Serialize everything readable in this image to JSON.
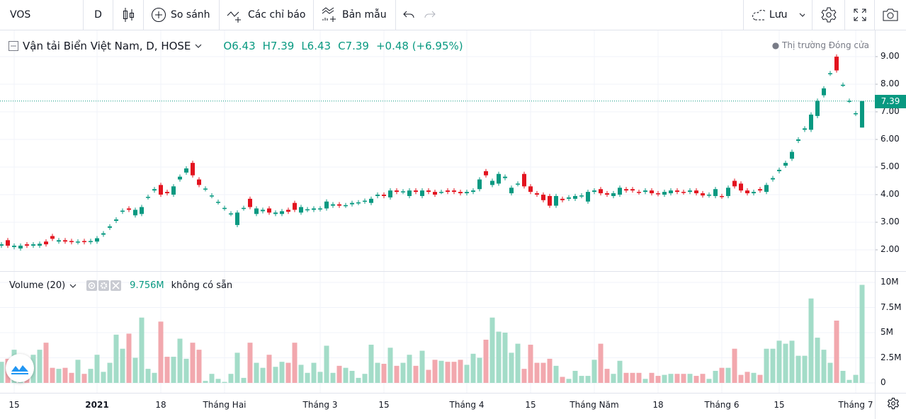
{
  "toolbar": {
    "symbol": "VOS",
    "interval": "D",
    "compare_label": "So sánh",
    "indicators_label": "Các chỉ báo",
    "templates_label": "Bản mẫu",
    "save_label": "Lưu"
  },
  "legend": {
    "title": "Vận tải Biển Việt Nam, D, HOSE",
    "open": "O6.43",
    "high": "H7.39",
    "low": "L6.43",
    "close": "C7.39",
    "change": "+0.48 (+6.95%)",
    "market_status": "● Thị trường Đóng cửa"
  },
  "volume_legend": {
    "title": "Volume (20)",
    "value": "9.756M",
    "ma_text": "không có sẵn"
  },
  "last_price_label": "7.39",
  "colors": {
    "up": "#089981",
    "down": "#e3131f",
    "vol_up": "#a3dcc8",
    "vol_down": "#f2a8ae"
  },
  "chart_data": {
    "type": "candlestick",
    "symbol": "VOS",
    "price_ticks": [
      "9.00",
      "8.00",
      "7.00",
      "6.00",
      "5.00",
      "4.00",
      "3.00",
      "2.00"
    ],
    "price_range": [
      1.3,
      10.0
    ],
    "volume_ticks": [
      {
        "label": "10M",
        "value": 10
      },
      {
        "label": "7.5M",
        "value": 7.5
      },
      {
        "label": "5M",
        "value": 5
      },
      {
        "label": "2.5M",
        "value": 2.5
      },
      {
        "label": "0",
        "value": 0
      }
    ],
    "time_labels": [
      {
        "label": "15",
        "bar": 2
      },
      {
        "label": "2021",
        "bar": 15,
        "bold": true
      },
      {
        "label": "18",
        "bar": 25
      },
      {
        "label": "Tháng Hai",
        "bar": 35
      },
      {
        "label": "Tháng 3",
        "bar": 50
      },
      {
        "label": "15",
        "bar": 60
      },
      {
        "label": "Tháng 4",
        "bar": 73
      },
      {
        "label": "15",
        "bar": 83
      },
      {
        "label": "Tháng Năm",
        "bar": 93
      },
      {
        "label": "18",
        "bar": 103
      },
      {
        "label": "Tháng 6",
        "bar": 113
      },
      {
        "label": "15",
        "bar": 122
      },
      {
        "label": "Tháng 7",
        "bar": 134
      }
    ],
    "candles_fields": [
      "open",
      "close",
      "volume_M"
    ],
    "candles": [
      [
        2.15,
        2.2,
        2.1
      ],
      [
        2.35,
        2.15,
        2.4
      ],
      [
        2.1,
        2.15,
        3.3
      ],
      [
        2.05,
        2.15,
        1.5
      ],
      [
        2.2,
        2.15,
        1.9
      ],
      [
        2.15,
        2.2,
        2.8
      ],
      [
        2.15,
        2.22,
        3.3
      ],
      [
        2.3,
        2.2,
        4.0
      ],
      [
        2.5,
        2.4,
        1.5
      ],
      [
        2.3,
        2.35,
        1.4
      ],
      [
        2.35,
        2.3,
        1.5
      ],
      [
        2.32,
        2.28,
        1.0
      ],
      [
        2.28,
        2.3,
        2.3
      ],
      [
        2.32,
        2.28,
        0.9
      ],
      [
        2.28,
        2.32,
        1.4
      ],
      [
        2.3,
        2.42,
        2.8
      ],
      [
        2.55,
        2.6,
        1.1
      ],
      [
        2.8,
        2.85,
        2.0
      ],
      [
        3.05,
        3.1,
        4.8
      ],
      [
        3.38,
        3.42,
        3.4
      ],
      [
        3.5,
        3.45,
        4.9
      ],
      [
        3.25,
        3.45,
        2.5
      ],
      [
        3.3,
        3.55,
        6.5
      ],
      [
        3.9,
        3.92,
        1.4
      ],
      [
        4.15,
        4.2,
        1.0
      ],
      [
        4.35,
        4.0,
        6.1
      ],
      [
        4.1,
        4.05,
        2.6
      ],
      [
        4.0,
        4.3,
        2.6
      ],
      [
        4.55,
        4.65,
        4.4
      ],
      [
        4.8,
        4.95,
        2.4
      ],
      [
        5.15,
        4.7,
        4.0
      ],
      [
        4.55,
        4.35,
        3.3
      ],
      [
        4.2,
        4.22,
        0.2
      ],
      [
        3.95,
        3.97,
        0.9
      ],
      [
        3.72,
        3.74,
        0.4
      ],
      [
        3.5,
        3.52,
        0.1
      ],
      [
        3.3,
        3.32,
        0.9
      ],
      [
        2.9,
        3.35,
        3.0
      ],
      [
        3.5,
        3.52,
        0.5
      ],
      [
        3.85,
        3.55,
        4.0
      ],
      [
        3.3,
        3.5,
        2.0
      ],
      [
        3.4,
        3.45,
        1.5
      ],
      [
        3.5,
        3.35,
        2.8
      ],
      [
        3.3,
        3.35,
        1.6
      ],
      [
        3.3,
        3.4,
        2.1
      ],
      [
        3.45,
        3.38,
        2.0
      ],
      [
        3.7,
        3.45,
        4.0
      ],
      [
        3.35,
        3.55,
        1.8
      ],
      [
        3.45,
        3.47,
        1.0
      ],
      [
        3.45,
        3.5,
        2.0
      ],
      [
        3.47,
        3.5,
        1.1
      ],
      [
        3.5,
        3.75,
        3.7
      ],
      [
        3.6,
        3.65,
        1.0
      ],
      [
        3.65,
        3.6,
        1.7
      ],
      [
        3.6,
        3.62,
        1.5
      ],
      [
        3.65,
        3.7,
        1.2
      ],
      [
        3.7,
        3.72,
        0.5
      ],
      [
        3.75,
        3.78,
        0.9
      ],
      [
        3.7,
        3.85,
        3.8
      ],
      [
        3.95,
        4.0,
        2.0
      ],
      [
        4.0,
        3.95,
        1.9
      ],
      [
        3.9,
        4.15,
        3.5
      ],
      [
        4.15,
        4.1,
        1.7
      ],
      [
        4.1,
        4.12,
        2.0
      ],
      [
        3.95,
        4.15,
        2.8
      ],
      [
        4.15,
        4.1,
        1.7
      ],
      [
        3.95,
        4.15,
        3.2
      ],
      [
        4.15,
        4.1,
        1.3
      ],
      [
        4.1,
        4.0,
        2.3
      ],
      [
        4.1,
        4.1,
        2.2
      ],
      [
        4.15,
        4.1,
        2.1
      ],
      [
        4.15,
        4.1,
        2.1
      ],
      [
        4.1,
        4.05,
        2.3
      ],
      [
        4.05,
        4.1,
        1.8
      ],
      [
        4.1,
        4.15,
        2.9
      ],
      [
        4.2,
        4.55,
        2.5
      ],
      [
        4.85,
        4.7,
        4.3
      ],
      [
        4.35,
        4.5,
        6.5
      ],
      [
        4.4,
        4.75,
        5.1
      ],
      [
        4.6,
        4.65,
        5.0
      ],
      [
        4.05,
        4.25,
        3.0
      ],
      [
        4.38,
        4.4,
        3.9
      ],
      [
        4.75,
        4.3,
        1.4
      ],
      [
        4.3,
        4.1,
        3.8
      ],
      [
        4.05,
        4.0,
        2.0
      ],
      [
        4.0,
        3.8,
        2.0
      ],
      [
        3.95,
        3.6,
        2.4
      ],
      [
        3.6,
        3.95,
        1.7
      ],
      [
        3.85,
        3.8,
        0.6
      ],
      [
        3.85,
        3.9,
        0.4
      ],
      [
        3.85,
        3.95,
        1.2
      ],
      [
        3.95,
        3.97,
        0.7
      ],
      [
        3.75,
        4.1,
        0.7
      ],
      [
        4.1,
        4.15,
        2.3
      ],
      [
        4.2,
        4.05,
        3.9
      ],
      [
        4.05,
        4.0,
        1.4
      ],
      [
        3.95,
        4.05,
        0.9
      ],
      [
        4.0,
        4.25,
        2.2
      ],
      [
        4.2,
        4.15,
        1.0
      ],
      [
        4.2,
        4.15,
        1.0
      ],
      [
        4.1,
        4.08,
        1.0
      ],
      [
        4.1,
        4.15,
        0.4
      ],
      [
        4.15,
        4.05,
        1.0
      ],
      [
        4.05,
        4.02,
        0.7
      ],
      [
        4.0,
        4.1,
        0.8
      ],
      [
        4.05,
        4.15,
        0.9
      ],
      [
        4.15,
        4.1,
        0.9
      ],
      [
        4.1,
        4.08,
        0.9
      ],
      [
        4.1,
        4.15,
        0.9
      ],
      [
        4.15,
        4.05,
        0.7
      ],
      [
        4.05,
        3.97,
        0.9
      ],
      [
        3.97,
        4.0,
        0.4
      ],
      [
        3.95,
        4.2,
        1.2
      ],
      [
        3.95,
        3.93,
        1.5
      ],
      [
        3.95,
        4.25,
        1.5
      ],
      [
        4.5,
        4.3,
        3.4
      ],
      [
        4.4,
        4.15,
        0.8
      ],
      [
        4.15,
        4.05,
        1.1
      ],
      [
        4.05,
        4.1,
        1.0
      ],
      [
        4.2,
        4.15,
        0.8
      ],
      [
        4.1,
        4.35,
        3.4
      ],
      [
        4.55,
        4.6,
        3.4
      ],
      [
        4.85,
        4.9,
        4.2
      ],
      [
        5.05,
        5.15,
        3.9
      ],
      [
        5.3,
        5.55,
        4.2
      ],
      [
        5.95,
        6.0,
        2.7
      ],
      [
        6.35,
        6.4,
        2.7
      ],
      [
        6.35,
        6.9,
        8.4
      ],
      [
        6.85,
        7.4,
        4.5
      ],
      [
        7.6,
        7.85,
        3.3
      ],
      [
        8.38,
        8.4,
        2.0
      ],
      [
        9.0,
        8.5,
        6.2
      ],
      [
        7.98,
        7.98,
        1.2
      ],
      [
        7.4,
        7.4,
        0.3
      ],
      [
        6.93,
        6.95,
        0.8
      ],
      [
        6.43,
        7.39,
        9.756
      ]
    ],
    "last_price": 7.39
  }
}
